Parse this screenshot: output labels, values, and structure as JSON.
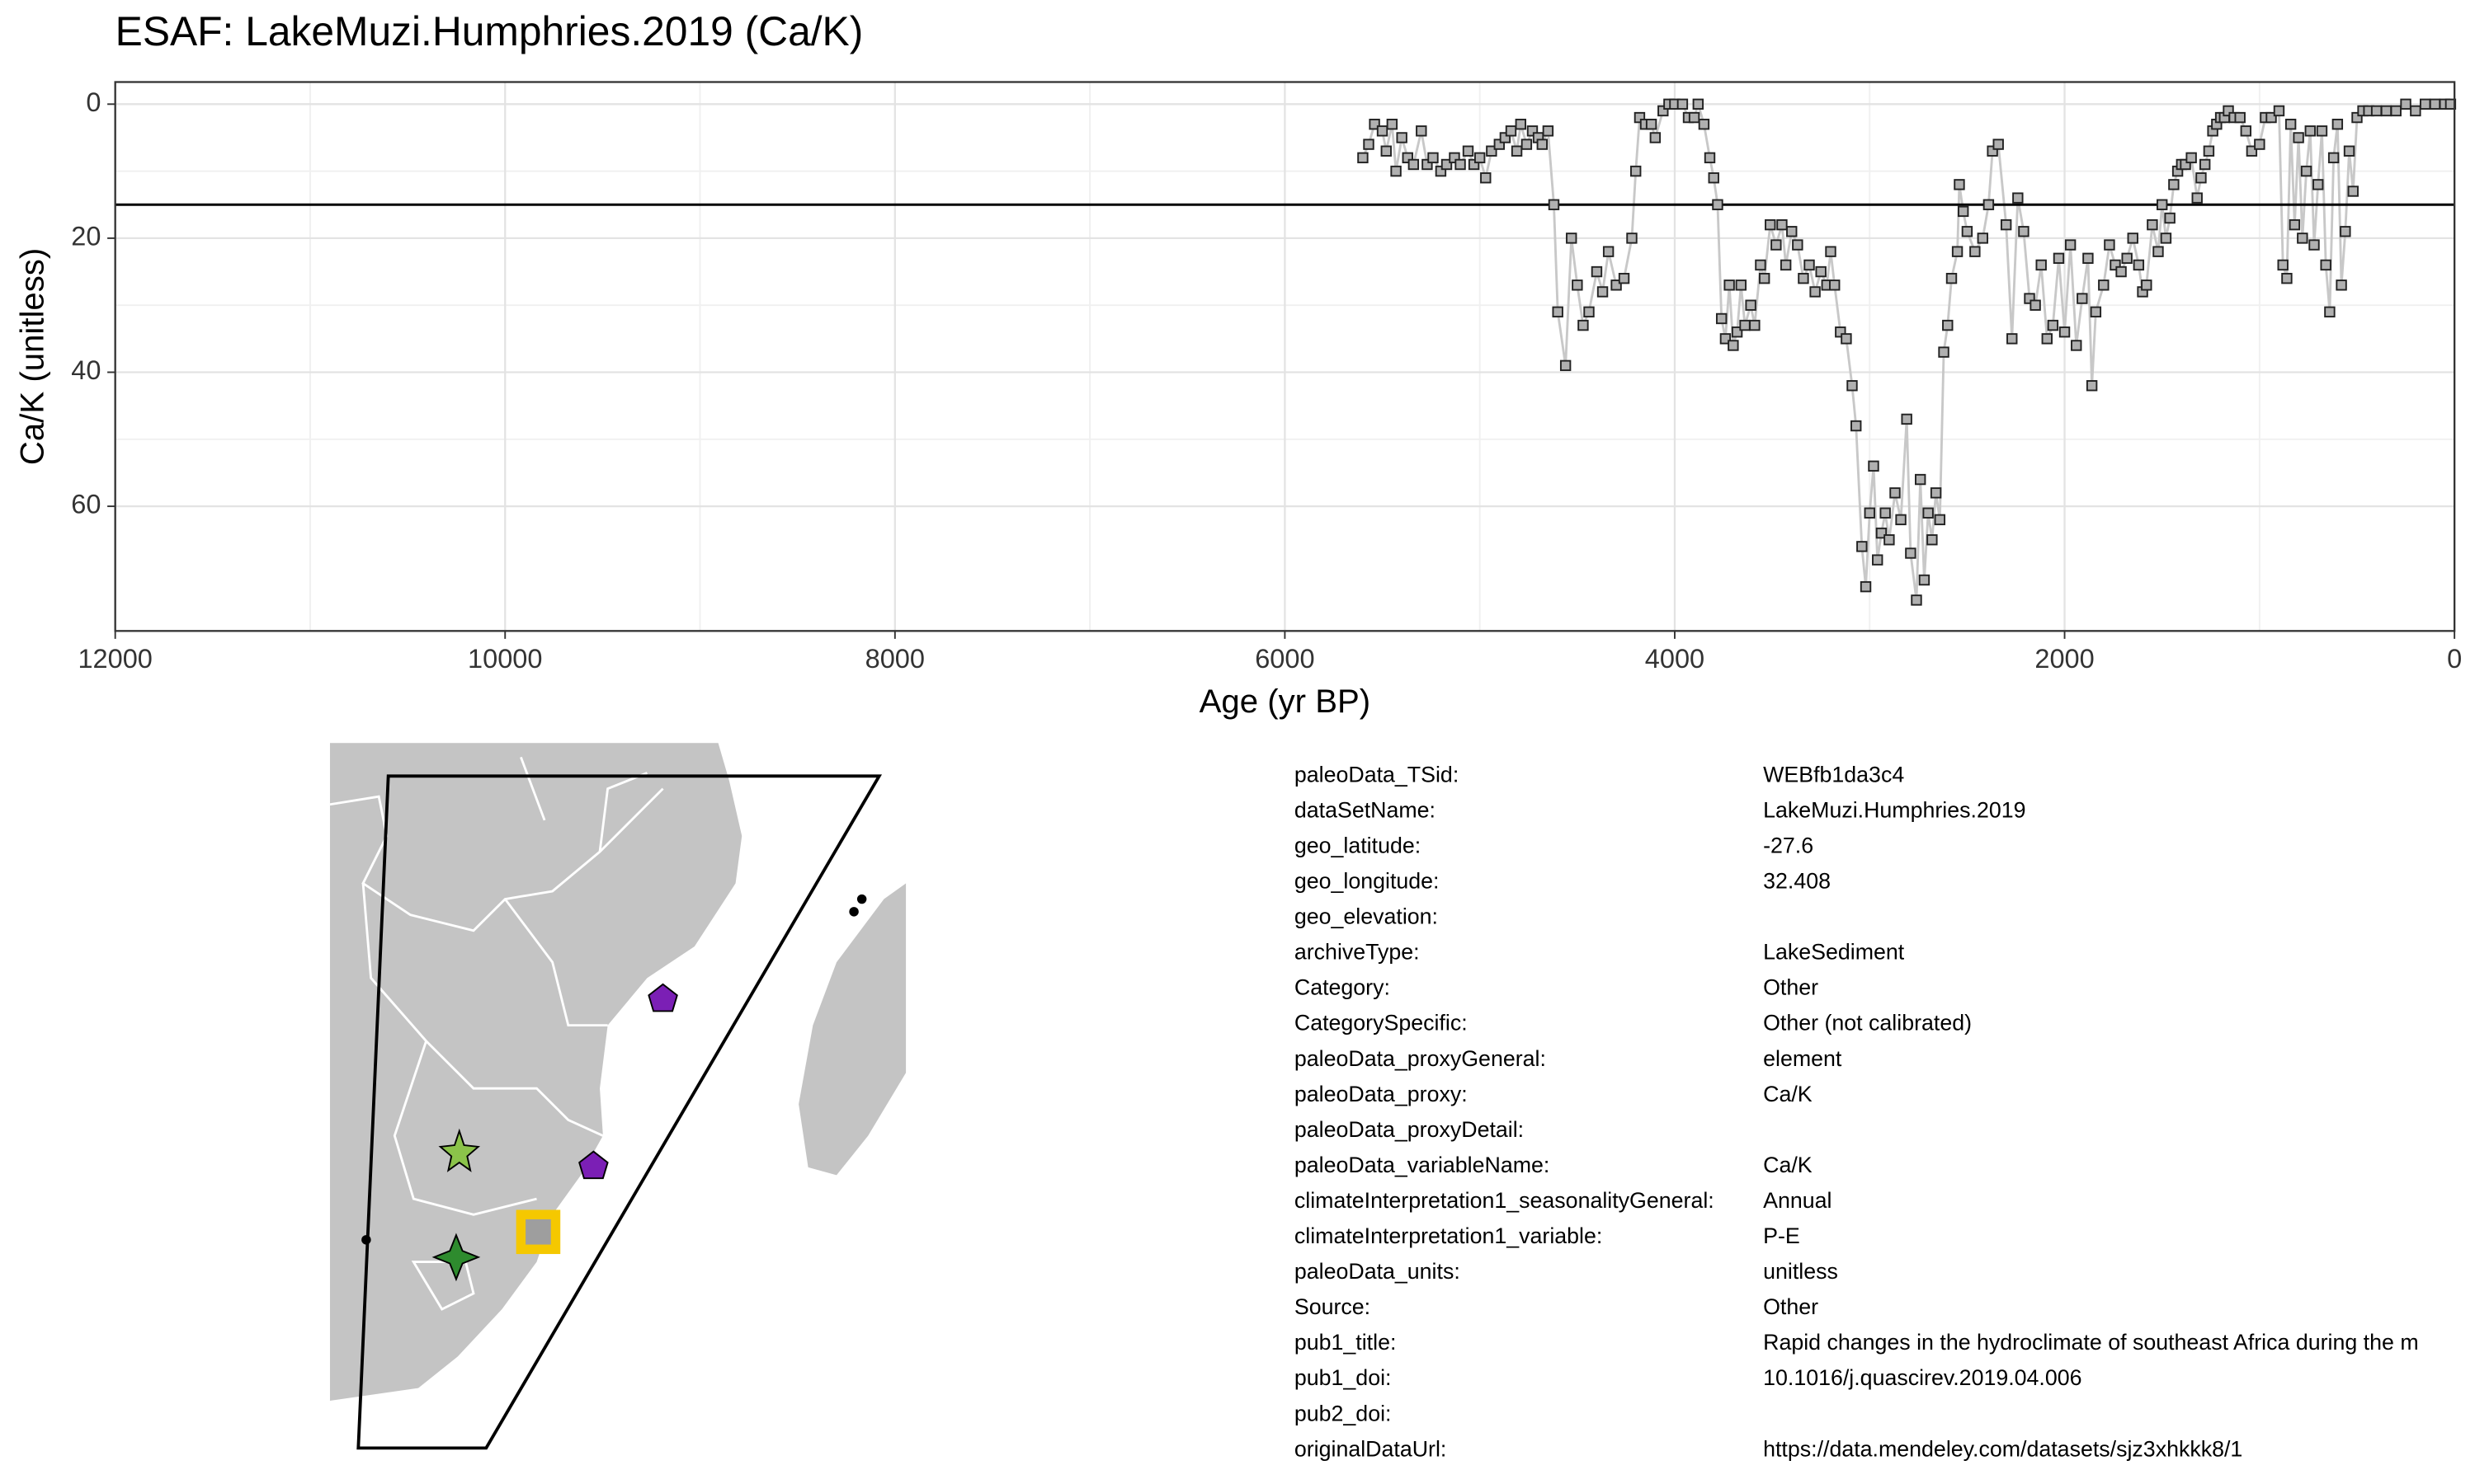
{
  "chart_data": {
    "type": "line",
    "title": "ESAF: LakeMuzi.Humphries.2019 (Ca/K)",
    "x_label": "Age (yr BP)",
    "y_label": "Ca/K (unitless)",
    "xlim": [
      12000,
      0
    ],
    "ylim": [
      -3.3,
      78.6
    ],
    "y_reversed": true,
    "xticks": [
      12000,
      10000,
      8000,
      6000,
      4000,
      2000,
      0
    ],
    "yticks": [
      0,
      20,
      40,
      60
    ],
    "grid": true,
    "hline": 15,
    "color": "#b0b0b0",
    "line_color": "#c8c8c8",
    "x": [
      5600,
      5570,
      5540,
      5500,
      5480,
      5450,
      5430,
      5400,
      5370,
      5340,
      5300,
      5270,
      5240,
      5200,
      5170,
      5130,
      5100,
      5060,
      5030,
      5000,
      4970,
      4940,
      4900,
      4870,
      4840,
      4810,
      4790,
      4760,
      4730,
      4700,
      4680,
      4650,
      4620,
      4600,
      4560,
      4530,
      4500,
      4470,
      4440,
      4400,
      4370,
      4340,
      4300,
      4260,
      4220,
      4200,
      4180,
      4150,
      4120,
      4100,
      4060,
      4030,
      4000,
      3960,
      3930,
      3900,
      3880,
      3850,
      3820,
      3800,
      3780,
      3760,
      3740,
      3720,
      3700,
      3680,
      3660,
      3640,
      3610,
      3590,
      3560,
      3540,
      3510,
      3480,
      3450,
      3430,
      3400,
      3370,
      3340,
      3310,
      3280,
      3250,
      3220,
      3200,
      3180,
      3150,
      3120,
      3090,
      3070,
      3040,
      3020,
      3000,
      2980,
      2960,
      2940,
      2920,
      2900,
      2870,
      2840,
      2810,
      2790,
      2760,
      2740,
      2720,
      2700,
      2680,
      2660,
      2640,
      2620,
      2600,
      2580,
      2550,
      2540,
      2520,
      2500,
      2460,
      2420,
      2390,
      2370,
      2340,
      2300,
      2270,
      2240,
      2210,
      2180,
      2150,
      2120,
      2090,
      2060,
      2030,
      2000,
      1970,
      1940,
      1910,
      1880,
      1860,
      1840,
      1800,
      1770,
      1740,
      1710,
      1680,
      1650,
      1620,
      1600,
      1580,
      1550,
      1520,
      1500,
      1480,
      1460,
      1440,
      1420,
      1400,
      1380,
      1350,
      1320,
      1300,
      1280,
      1260,
      1240,
      1220,
      1200,
      1180,
      1160,
      1130,
      1100,
      1070,
      1040,
      1000,
      970,
      940,
      900,
      880,
      860,
      840,
      820,
      800,
      780,
      760,
      740,
      720,
      700,
      680,
      660,
      640,
      620,
      600,
      580,
      560,
      540,
      520,
      500,
      470,
      440,
      400,
      350,
      300,
      250,
      200,
      150,
      100,
      50,
      20
    ],
    "values": [
      8,
      6,
      3,
      4,
      7,
      3,
      10,
      5,
      8,
      9,
      4,
      9,
      8,
      10,
      9,
      8,
      9,
      7,
      9,
      8,
      11,
      7,
      6,
      5,
      4,
      7,
      3,
      6,
      4,
      5,
      6,
      4,
      15,
      31,
      39,
      20,
      27,
      33,
      31,
      25,
      28,
      22,
      27,
      26,
      20,
      10,
      2,
      3,
      3,
      5,
      1,
      0,
      0,
      0,
      2,
      2,
      0,
      3,
      8,
      11,
      15,
      32,
      35,
      27,
      36,
      34,
      27,
      33,
      30,
      33,
      24,
      26,
      18,
      21,
      18,
      24,
      19,
      21,
      26,
      24,
      28,
      25,
      27,
      22,
      27,
      34,
      35,
      42,
      48,
      66,
      72,
      61,
      54,
      68,
      64,
      61,
      65,
      58,
      62,
      47,
      67,
      74,
      56,
      71,
      61,
      65,
      58,
      62,
      37,
      33,
      26,
      22,
      12,
      16,
      19,
      22,
      20,
      15,
      7,
      6,
      18,
      35,
      14,
      19,
      29,
      30,
      24,
      35,
      33,
      23,
      34,
      21,
      36,
      29,
      23,
      42,
      31,
      27,
      21,
      24,
      25,
      23,
      20,
      24,
      28,
      27,
      18,
      22,
      15,
      20,
      17,
      12,
      10,
      9,
      9,
      8,
      14,
      11,
      9,
      7,
      4,
      3,
      2,
      2,
      1,
      2,
      2,
      4,
      7,
      6,
      2,
      2,
      1,
      24,
      26,
      3,
      18,
      5,
      20,
      10,
      4,
      21,
      12,
      4,
      24,
      31,
      8,
      3,
      27,
      19,
      7,
      13,
      2,
      1,
      1,
      1,
      1,
      1,
      0,
      1,
      0,
      0,
      0,
      0
    ]
  },
  "metadata": [
    {
      "key": "paleoData_TSid:",
      "value": "WEBfb1da3c4"
    },
    {
      "key": "dataSetName:",
      "value": "LakeMuzi.Humphries.2019"
    },
    {
      "key": "geo_latitude:",
      "value": "-27.6"
    },
    {
      "key": "geo_longitude:",
      "value": "32.408"
    },
    {
      "key": "geo_elevation:"
    },
    {
      "key": "archiveType:",
      "value": "LakeSediment"
    },
    {
      "key": "Category:",
      "value": "Other"
    },
    {
      "key": "CategorySpecific:",
      "value": "Other (not calibrated)"
    },
    {
      "key": "paleoData_proxyGeneral:",
      "value": "element"
    },
    {
      "key": "paleoData_proxy:",
      "value": "Ca/K"
    },
    {
      "key": "paleoData_proxyDetail:"
    },
    {
      "key": "paleoData_variableName:",
      "value": "Ca/K"
    },
    {
      "key": "climateInterpretation1_seasonalityGeneral:",
      "value": "Annual"
    },
    {
      "key": "climateInterpretation1_variable:",
      "value": "P-E"
    },
    {
      "key": "paleoData_units:",
      "value": "unitless"
    },
    {
      "key": "Source:",
      "value": "Other"
    },
    {
      "key": "pub1_title:",
      "value": "Rapid changes in the hydroclimate of southeast Africa during the m"
    },
    {
      "key": "pub1_doi:",
      "value": "10.1016/j.quascirev.2019.04.006"
    },
    {
      "key": "pub2_doi:"
    },
    {
      "key": "originalDataUrl:",
      "value": "https://data.mendeley.com/datasets/sjz3xhkkk8/1"
    }
  ]
}
